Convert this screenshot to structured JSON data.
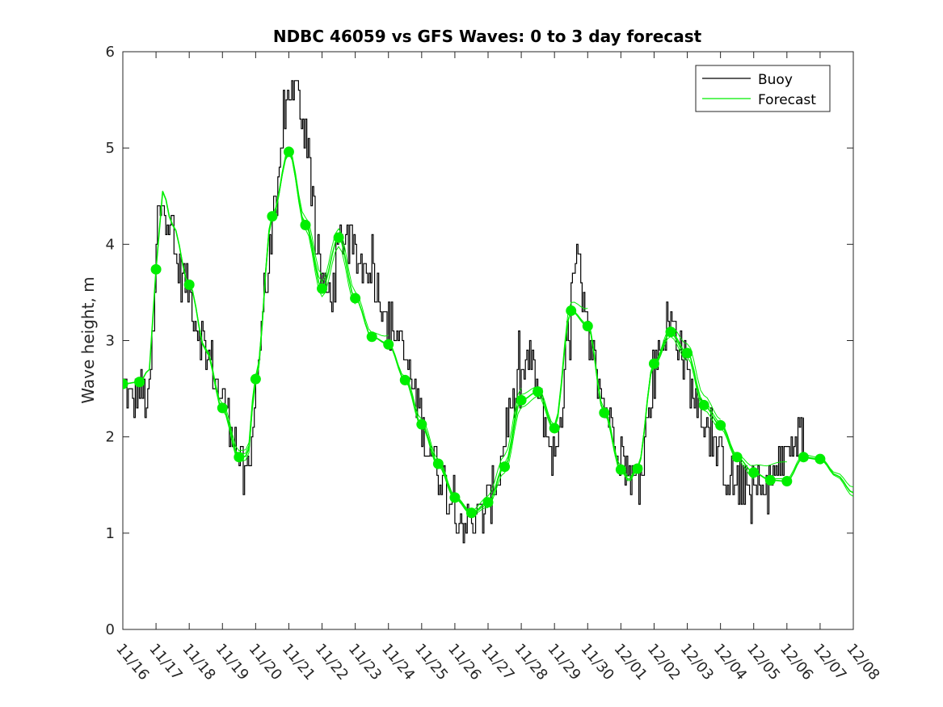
{
  "chart_data": {
    "type": "line",
    "title": "NDBC 46059 vs GFS Waves: 0 to 3 day forecast",
    "xlabel": "",
    "ylabel": "Wave height, m",
    "ylim": [
      0,
      6
    ],
    "yticks": [
      0,
      1,
      2,
      3,
      4,
      5,
      6
    ],
    "xlim_days": [
      0,
      22
    ],
    "xtick_labels": [
      "11/16",
      "11/17",
      "11/18",
      "11/19",
      "11/20",
      "11/21",
      "11/22",
      "11/23",
      "11/24",
      "11/25",
      "11/26",
      "11/27",
      "11/28",
      "11/29",
      "11/30",
      "12/01",
      "12/02",
      "12/03",
      "12/04",
      "12/05",
      "12/06",
      "12/07",
      "12/08"
    ],
    "legend": {
      "location": "top-right",
      "entries": [
        {
          "label": "Buoy",
          "color": "#000000"
        },
        {
          "label": "Forecast",
          "color": "#00ee00"
        }
      ]
    },
    "colors": {
      "buoy": "#000000",
      "forecast": "#00ee00",
      "axes": "#262626"
    },
    "series": [
      {
        "name": "Buoy",
        "anchors": [
          [
            0,
            2.5
          ],
          [
            0.25,
            2.35
          ],
          [
            0.5,
            2.5
          ],
          [
            0.75,
            2.3
          ],
          [
            0.9,
            3.0
          ],
          [
            1.05,
            4.3
          ],
          [
            1.2,
            4.5
          ],
          [
            1.4,
            4.2
          ],
          [
            1.7,
            3.7
          ],
          [
            2.0,
            3.5
          ],
          [
            2.3,
            3.1
          ],
          [
            2.6,
            2.8
          ],
          [
            3.0,
            2.4
          ],
          [
            3.3,
            2.1
          ],
          [
            3.5,
            1.8
          ],
          [
            3.65,
            1.5
          ],
          [
            3.8,
            1.65
          ],
          [
            4.0,
            2.6
          ],
          [
            4.3,
            3.6
          ],
          [
            4.6,
            4.3
          ],
          [
            4.85,
            5.3
          ],
          [
            5.0,
            5.6
          ],
          [
            5.2,
            5.6
          ],
          [
            5.5,
            5.2
          ],
          [
            5.7,
            4.6
          ],
          [
            5.85,
            3.8
          ],
          [
            6.1,
            3.5
          ],
          [
            6.3,
            3.5
          ],
          [
            6.5,
            4.0
          ],
          [
            6.7,
            4.1
          ],
          [
            6.9,
            3.9
          ],
          [
            7.1,
            3.8
          ],
          [
            7.4,
            3.8
          ],
          [
            7.7,
            3.5
          ],
          [
            8.0,
            3.2
          ],
          [
            8.2,
            3.1
          ],
          [
            8.5,
            2.8
          ],
          [
            8.8,
            2.4
          ],
          [
            9.2,
            1.9
          ],
          [
            9.6,
            1.6
          ],
          [
            9.9,
            1.35
          ],
          [
            10.3,
            1.1
          ],
          [
            10.7,
            1.15
          ],
          [
            11.0,
            1.3
          ],
          [
            11.3,
            1.6
          ],
          [
            11.6,
            2.2
          ],
          [
            11.9,
            2.5
          ],
          [
            12.15,
            2.75
          ],
          [
            12.35,
            2.7
          ],
          [
            12.6,
            2.3
          ],
          [
            12.8,
            2.0
          ],
          [
            13.0,
            1.75
          ],
          [
            13.2,
            2.3
          ],
          [
            13.4,
            3.0
          ],
          [
            13.55,
            3.6
          ],
          [
            13.7,
            3.8
          ],
          [
            13.85,
            3.3
          ],
          [
            14.1,
            2.9
          ],
          [
            14.3,
            2.6
          ],
          [
            14.5,
            2.3
          ],
          [
            14.8,
            2.05
          ],
          [
            15.0,
            1.8
          ],
          [
            15.2,
            1.6
          ],
          [
            15.4,
            1.55
          ],
          [
            15.6,
            1.7
          ],
          [
            15.8,
            2.2
          ],
          [
            16.0,
            2.7
          ],
          [
            16.2,
            3.0
          ],
          [
            16.45,
            3.2
          ],
          [
            16.65,
            3.1
          ],
          [
            16.9,
            2.8
          ],
          [
            17.1,
            2.5
          ],
          [
            17.4,
            2.3
          ],
          [
            17.7,
            2.0
          ],
          [
            17.95,
            1.8
          ],
          [
            18.2,
            1.6
          ],
          [
            18.5,
            1.5
          ],
          [
            18.9,
            1.45
          ],
          [
            19.3,
            1.45
          ],
          [
            19.7,
            1.6
          ],
          [
            20.0,
            1.85
          ],
          [
            20.3,
            2.0
          ],
          [
            20.5,
            1.95
          ]
        ]
      },
      {
        "name": "Forecast",
        "markers": [
          [
            0,
            2.55
          ],
          [
            0.5,
            2.57
          ],
          [
            1,
            3.74
          ],
          [
            2,
            3.58
          ],
          [
            3,
            2.3
          ],
          [
            3.5,
            1.79
          ],
          [
            4,
            2.6
          ],
          [
            4.5,
            4.29
          ],
          [
            5,
            4.96
          ],
          [
            5.5,
            4.2
          ],
          [
            6,
            3.54
          ],
          [
            6.5,
            4.07
          ],
          [
            7,
            3.44
          ],
          [
            7.5,
            3.04
          ],
          [
            8,
            2.96
          ],
          [
            8.5,
            2.59
          ],
          [
            9,
            2.13
          ],
          [
            9.5,
            1.72
          ],
          [
            10,
            1.37
          ],
          [
            10.5,
            1.21
          ],
          [
            11,
            1.32
          ],
          [
            11.5,
            1.69
          ],
          [
            12,
            2.38
          ],
          [
            12.5,
            2.47
          ],
          [
            13,
            2.09
          ],
          [
            13.5,
            3.31
          ],
          [
            14,
            3.15
          ],
          [
            14.5,
            2.25
          ],
          [
            15,
            1.66
          ],
          [
            15.5,
            1.67
          ],
          [
            16,
            2.76
          ],
          [
            16.5,
            3.09
          ],
          [
            17,
            2.87
          ],
          [
            17.5,
            2.33
          ],
          [
            18,
            2.12
          ],
          [
            18.5,
            1.79
          ],
          [
            19,
            1.63
          ],
          [
            19.5,
            1.55
          ],
          [
            20,
            1.54
          ],
          [
            20.5,
            1.79
          ],
          [
            21,
            1.77
          ]
        ],
        "anchors": [
          [
            0,
            2.55
          ],
          [
            0.5,
            2.57
          ],
          [
            0.8,
            2.7
          ],
          [
            1,
            3.74
          ],
          [
            1.2,
            4.55
          ],
          [
            1.5,
            4.2
          ],
          [
            2,
            3.58
          ],
          [
            2.5,
            2.9
          ],
          [
            3,
            2.3
          ],
          [
            3.5,
            1.79
          ],
          [
            3.75,
            1.8
          ],
          [
            4,
            2.6
          ],
          [
            4.5,
            4.29
          ],
          [
            5,
            4.96
          ],
          [
            5.5,
            4.2
          ],
          [
            6,
            3.54
          ],
          [
            6.5,
            4.07
          ],
          [
            7,
            3.44
          ],
          [
            7.5,
            3.04
          ],
          [
            8,
            2.96
          ],
          [
            8.5,
            2.59
          ],
          [
            9,
            2.13
          ],
          [
            9.5,
            1.72
          ],
          [
            10,
            1.37
          ],
          [
            10.5,
            1.21
          ],
          [
            11,
            1.32
          ],
          [
            11.5,
            1.69
          ],
          [
            12,
            2.38
          ],
          [
            12.5,
            2.47
          ],
          [
            13,
            2.09
          ],
          [
            13.5,
            3.31
          ],
          [
            14,
            3.15
          ],
          [
            14.5,
            2.25
          ],
          [
            15,
            1.66
          ],
          [
            15.25,
            1.55
          ],
          [
            15.5,
            1.67
          ],
          [
            16,
            2.76
          ],
          [
            16.5,
            3.09
          ],
          [
            17,
            2.87
          ],
          [
            17.5,
            2.33
          ],
          [
            18,
            2.12
          ],
          [
            18.5,
            1.79
          ],
          [
            19,
            1.63
          ],
          [
            19.5,
            1.55
          ],
          [
            20,
            1.54
          ],
          [
            20.5,
            1.79
          ],
          [
            21,
            1.77
          ],
          [
            21.5,
            1.6
          ],
          [
            22,
            1.42
          ]
        ],
        "ensemble_offsets": [
          0,
          0.05,
          -0.05,
          0.09,
          -0.08,
          0.13
        ]
      }
    ]
  }
}
